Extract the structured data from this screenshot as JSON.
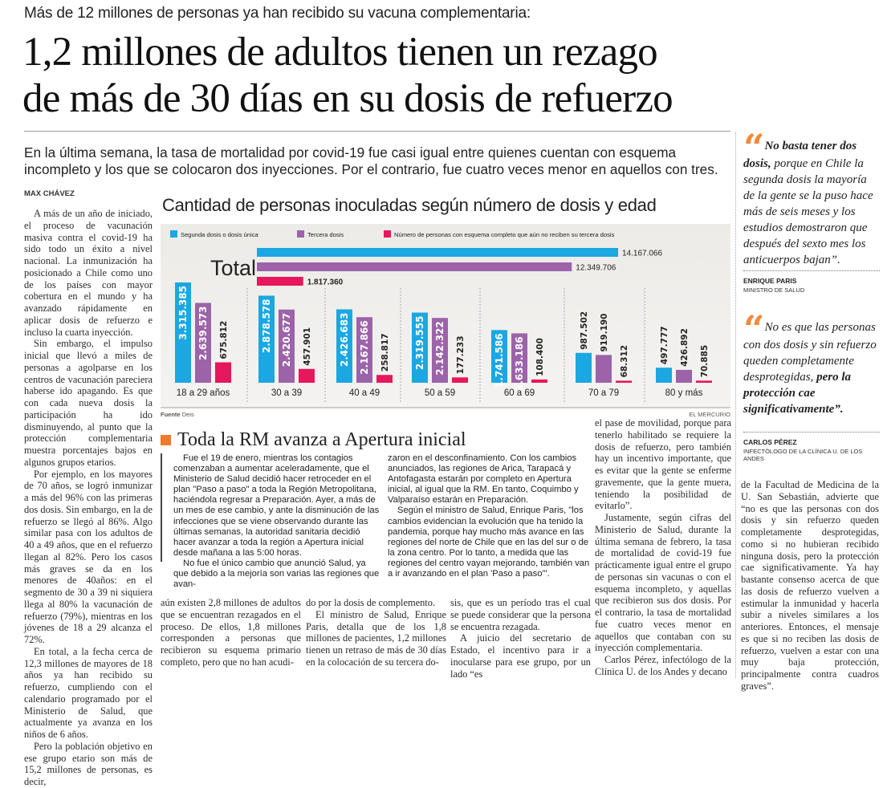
{
  "kicker": "Más de 12 millones de personas ya han recibido su vacuna complementaria:",
  "headline": [
    "1,2 millones de adultos tienen un rezago",
    "de más de 30 días en su dosis de refuerzo"
  ],
  "lead": "En la última semana, la tasa de mortalidad por covid-19 fue casi igual entre quienes cuentan con esquema incompleto y los que se colocaron dos inyecciones. Por el contrario, fue cuatro veces menor en aquellos con tres.",
  "byline": "MAX CHÁVEZ",
  "left_column": [
    "A más de un año de iniciado, el proceso de vacunación masiva contra el covid-19 ha sido todo un éxito a nivel nacional. La inmunización ha posicionado a Chile como uno de los países con mayor cobertura en el mundo y ha avanzado rápidamente en aplicar dosis de refuerzo e incluso la cuarta inyección.",
    "Sin embargo, el impulso inicial que llevó a miles de personas a agolparse en los centros de vacunación pareciera haberse ido apagando. Es que con cada nueva dosis la participación ha ido disminuyendo, al punto que la protección complementaria muestra porcentajes bajos en algunos grupos etarios.",
    "Por ejemplo, en los mayores de 70 años, se logró inmunizar a más del 96% con las primeras dos dosis. Sin embargo, en la de refuerzo se llegó al 86%. Algo similar pasa con los adultos de 40 a 49 años, que en el refuerzo llegan al 82%. Pero los casos más graves se da en los menores de 40años: en el segmento de 30 a 39 ni siquiera llega al 80% la vacunación de refuerzo (79%), mientras en los jóvenes de 18 a 29 alcanza el 72%.",
    "En total, a la fecha cerca de 12,3 millones de mayores de 18 años ya han recibido su refuerzo, cumpliendo con el calendario programado por el Ministerio de Salud, que actualmente ya avanza en los niños de 6 años.",
    "Pero la población objetivo en ese grupo etario son más de 15,2 millones de personas, es decir,"
  ],
  "chart_data": {
    "type": "bar",
    "title": "Cantidad de personas inoculadas según número de dosis y edad",
    "categories": [
      "18 a 29 años",
      "30 a 39",
      "40 a 49",
      "50 a 59",
      "60 a 69",
      "70 a 79",
      "80 y más"
    ],
    "series": [
      {
        "name": "Segunda dosis o dosis única",
        "color": "#1ba7e1",
        "values": [
          3315385,
          2878578,
          2426683,
          2319555,
          1741586,
          987502,
          497777
        ],
        "labels": [
          "3.315.385",
          "2.878.578",
          "2.426.683",
          "2.319.555",
          "1.741.586",
          "987.502",
          "497.777"
        ]
      },
      {
        "name": "Tercera dosis",
        "color": "#9c63a9",
        "values": [
          2639573,
          2420677,
          2167866,
          2142322,
          1633186,
          919190,
          426892
        ],
        "labels": [
          "2.639.573",
          "2.420.677",
          "2.167.866",
          "2.142.322",
          "1.633.186",
          "919.190",
          "426.892"
        ]
      },
      {
        "name": "Número de personas con esquema completo que aún no reciben su tercera dosis",
        "color": "#e6175d",
        "values": [
          675812,
          457901,
          258817,
          177233,
          108400,
          68312,
          70885
        ],
        "labels": [
          "675.812",
          "457.901",
          "258.817",
          "177.233",
          "108.400",
          "68.312",
          "70.885"
        ]
      }
    ],
    "total": {
      "label": "Total",
      "values": [
        14167066,
        12349706,
        1817360
      ],
      "labels": [
        "14.167.066",
        "12.349.706",
        "1.817.360"
      ]
    },
    "source_label": "Fuente",
    "source": "Deis",
    "credit": "EL MERCURIO"
  },
  "section_title": "Toda la RM avanza a Apertura inicial",
  "box_columns": [
    [
      {
        "text": "Fue el 19 de enero, mientras los contagios comenzaban a aumentar aceleradamente, que el Ministerio de Salud decidió hacer retroceder en el plan \"Paso a paso\" a toda la Región Metropolitana, haciéndola regresar a Preparación. Ayer, a más de un mes de ese cambio, y ante la disminución de las infecciones que se viene observando durante las últimas semanas, la autoridad sanitaria decidió hacer avanzar a toda la región a Apertura inicial desde mañana a las 5:00 horas."
      },
      {
        "text": "No fue el único cambio que anunció Salud, ya que debido a la mejoría son varias las regiones que avan-"
      }
    ],
    [
      {
        "text": "zaron en el desconfinamiento. Con los cambios anunciados, las regiones de Arica, Tarapacá y Antofagasta estarán por completo en Apertura inicial, al igual que la RM. En tanto, Coquimbo y Valparaíso estarán en Preparación.",
        "cont": true
      },
      {
        "text": "Según el ministro de Salud, Enrique Paris, \"los cambios evidencian la evolución que ha tenido la pandemia, porque hay mucho más avance en las regiones del norte de Chile que en las del sur o de la zona centro. Por lo tanto, a medida que las regiones del centro vayan mejorando, también van a ir avanzando en el plan 'Paso a paso'\"."
      }
    ]
  ],
  "body_columns": [
    [
      {
        "text": "aún existen 2,8 millones de adultos que se encuentran rezagados en el proceso. De ellos, 1,8 millones corresponden a personas que recibieron su esquema primario completo, pero que no han acudi-",
        "cont": true
      }
    ],
    [
      {
        "text": "do por la dosis de complemento.",
        "cont": true
      },
      {
        "text": "El ministro de Salud, Enrique Paris, detalla que de los 1,8 millones de pacientes, 1,2 millones tienen un retraso de más de 30 días en la colocación de su tercera do-"
      }
    ],
    [
      {
        "text": "sis, que es un período tras el cual se puede considerar que la persona se encuentra rezagada.",
        "cont": true
      },
      {
        "text": "A juicio del secretario de Estado, el incentivo para ir a inocularse para ese grupo, por un lado “es"
      }
    ],
    [
      {
        "text": "el pase de movilidad, porque para tenerlo habilitado se requiere la dosis de refuerzo, pero también hay un incentivo importante, que es evitar que la gente se enferme gravemente, que la gente muera, teniendo la posibilidad de evitarlo”.",
        "cont": true
      },
      {
        "text": "Justamente, según cifras del Ministerio de Salud, durante la última semana de febrero, la tasa de mortalidad de covid-19 fue prácticamente igual entre el grupo de personas sin vacunas o con el esquema incompleto, y aquellas que recibieron sus dos dosis. Por el contrario, la tasa de mortalidad fue cuatro veces menor en aquellos que contaban con su inyección complementaria."
      },
      {
        "text": "Carlos Pérez, infectólogo de la Clínica U. de los Andes y decano"
      }
    ],
    [
      {
        "text": "de la Facultad de Medicina de la U. San Sebastián, advierte que “no es que las personas con dos dosis y sin refuerzo queden completamente desprotegidas, como si no hubieran recibido ninguna dosis, pero la protección cae significativamente. Ya hay bastante consenso acerca de que las dosis de refuerzo vuelven a estimular la inmunidad y hacerla subir a niveles similares a los anteriores. Entonces, el mensaje es que si no reciben las dosis de refuerzo, vuelven a estar con una muy baja protección, principalmente contra cuadros graves”.",
        "cont": true
      }
    ]
  ],
  "quotes": [
    {
      "mark": "“",
      "bold": "No basta tener dos dosis,",
      "text": " porque en Chile la segunda dosis la mayoría de la gente se la puso hace más de seis meses y los estudios demostraron que después del sexto mes los anticuerpos bajan”.",
      "name": "ENRIQUE PARIS",
      "role": "MINISTRO DE SALUD"
    },
    {
      "mark": "“",
      "text": "No es que las personas con dos dosis y sin refuerzo queden completamente desprotegidas, ",
      "bold": "pero la protección cae significativamente”.",
      "name": "CARLOS PÉREZ",
      "role": "INFECTÓLOGO DE LA CLÍNICA U. DE LOS ANDES"
    }
  ],
  "colors": {
    "accent": "#f08a3a"
  }
}
